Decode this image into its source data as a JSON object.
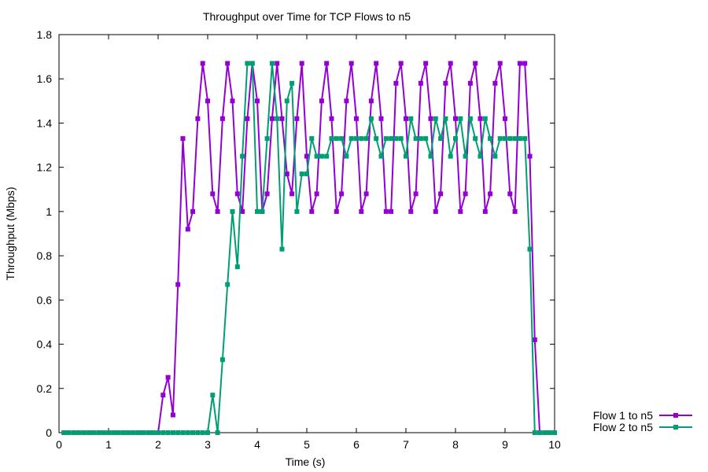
{
  "chart_data": {
    "type": "line",
    "title": "Throughput over Time for TCP Flows to n5",
    "xlabel": "Time (s)",
    "ylabel": "Throughput (Mbps)",
    "xlim": [
      0,
      10
    ],
    "ylim": [
      0,
      1.8
    ],
    "xticks": [
      "0",
      "1",
      "2",
      "3",
      "4",
      "5",
      "6",
      "7",
      "8",
      "9",
      "10"
    ],
    "yticks": [
      "0",
      "0.2",
      "0.4",
      "0.6",
      "0.8",
      "1",
      "1.2",
      "1.4",
      "1.6",
      "1.8"
    ],
    "grid": false,
    "legend_position": "bottom-right outside plot",
    "series": [
      {
        "name": "Flow 1 to n5",
        "color": "#9400d3",
        "points": [
          [
            0.1,
            0
          ],
          [
            0.2,
            0
          ],
          [
            0.3,
            0
          ],
          [
            0.4,
            0
          ],
          [
            0.5,
            0
          ],
          [
            0.6,
            0
          ],
          [
            0.7,
            0
          ],
          [
            0.8,
            0
          ],
          [
            0.9,
            0
          ],
          [
            1.0,
            0
          ],
          [
            1.1,
            0
          ],
          [
            1.2,
            0
          ],
          [
            1.3,
            0
          ],
          [
            1.4,
            0
          ],
          [
            1.5,
            0
          ],
          [
            1.6,
            0
          ],
          [
            1.7,
            0
          ],
          [
            1.8,
            0
          ],
          [
            1.9,
            0
          ],
          [
            2.0,
            0
          ],
          [
            2.1,
            0.17
          ],
          [
            2.2,
            0.25
          ],
          [
            2.3,
            0.08
          ],
          [
            2.4,
            0.67
          ],
          [
            2.5,
            1.33
          ],
          [
            2.6,
            0.92
          ],
          [
            2.7,
            1.0
          ],
          [
            2.8,
            1.42
          ],
          [
            2.9,
            1.67
          ],
          [
            3.0,
            1.5
          ],
          [
            3.1,
            1.08
          ],
          [
            3.2,
            1.0
          ],
          [
            3.3,
            1.42
          ],
          [
            3.4,
            1.67
          ],
          [
            3.5,
            1.5
          ],
          [
            3.6,
            1.08
          ],
          [
            3.7,
            1.0
          ],
          [
            3.8,
            1.42
          ],
          [
            3.9,
            1.67
          ],
          [
            4.0,
            1.5
          ],
          [
            4.1,
            1.0
          ],
          [
            4.2,
            1.08
          ],
          [
            4.3,
            1.42
          ],
          [
            4.4,
            1.67
          ],
          [
            4.5,
            1.42
          ],
          [
            4.6,
            1.17
          ],
          [
            4.7,
            1.08
          ],
          [
            4.8,
            1.42
          ],
          [
            4.9,
            1.67
          ],
          [
            5.0,
            1.25
          ],
          [
            5.1,
            1.0
          ],
          [
            5.2,
            1.08
          ],
          [
            5.3,
            1.5
          ],
          [
            5.4,
            1.67
          ],
          [
            5.5,
            1.42
          ],
          [
            5.6,
            1.0
          ],
          [
            5.7,
            1.08
          ],
          [
            5.8,
            1.5
          ],
          [
            5.9,
            1.67
          ],
          [
            6.0,
            1.42
          ],
          [
            6.1,
            1.0
          ],
          [
            6.2,
            1.08
          ],
          [
            6.3,
            1.5
          ],
          [
            6.4,
            1.67
          ],
          [
            6.5,
            1.42
          ],
          [
            6.6,
            1.0
          ],
          [
            6.7,
            1.0
          ],
          [
            6.8,
            1.58
          ],
          [
            6.9,
            1.67
          ],
          [
            7.0,
            1.42
          ],
          [
            7.1,
            1.0
          ],
          [
            7.2,
            1.08
          ],
          [
            7.3,
            1.58
          ],
          [
            7.4,
            1.67
          ],
          [
            7.5,
            1.42
          ],
          [
            7.6,
            1.0
          ],
          [
            7.7,
            1.08
          ],
          [
            7.8,
            1.58
          ],
          [
            7.9,
            1.67
          ],
          [
            8.0,
            1.42
          ],
          [
            8.1,
            1.0
          ],
          [
            8.2,
            1.08
          ],
          [
            8.3,
            1.58
          ],
          [
            8.4,
            1.67
          ],
          [
            8.5,
            1.42
          ],
          [
            8.6,
            1.0
          ],
          [
            8.7,
            1.08
          ],
          [
            8.8,
            1.58
          ],
          [
            8.9,
            1.67
          ],
          [
            9.0,
            1.42
          ],
          [
            9.1,
            1.08
          ],
          [
            9.2,
            1.0
          ],
          [
            9.3,
            1.67
          ],
          [
            9.4,
            1.67
          ],
          [
            9.5,
            1.25
          ],
          [
            9.6,
            0.42
          ],
          [
            9.7,
            0
          ],
          [
            9.8,
            0
          ],
          [
            9.9,
            0
          ],
          [
            10.0,
            0
          ]
        ]
      },
      {
        "name": "Flow 2 to n5",
        "color": "#009e73",
        "points": [
          [
            0.1,
            0
          ],
          [
            0.2,
            0
          ],
          [
            0.3,
            0
          ],
          [
            0.4,
            0
          ],
          [
            0.5,
            0
          ],
          [
            0.6,
            0
          ],
          [
            0.7,
            0
          ],
          [
            0.8,
            0
          ],
          [
            0.9,
            0
          ],
          [
            1.0,
            0
          ],
          [
            1.1,
            0
          ],
          [
            1.2,
            0
          ],
          [
            1.3,
            0
          ],
          [
            1.4,
            0
          ],
          [
            1.5,
            0
          ],
          [
            1.6,
            0
          ],
          [
            1.7,
            0
          ],
          [
            1.8,
            0
          ],
          [
            1.9,
            0
          ],
          [
            2.0,
            0
          ],
          [
            2.1,
            0
          ],
          [
            2.2,
            0
          ],
          [
            2.3,
            0
          ],
          [
            2.4,
            0
          ],
          [
            2.5,
            0
          ],
          [
            2.6,
            0
          ],
          [
            2.7,
            0
          ],
          [
            2.8,
            0
          ],
          [
            2.9,
            0
          ],
          [
            3.0,
            0
          ],
          [
            3.1,
            0.17
          ],
          [
            3.2,
            0
          ],
          [
            3.3,
            0.33
          ],
          [
            3.4,
            0.67
          ],
          [
            3.5,
            1.0
          ],
          [
            3.6,
            0.75
          ],
          [
            3.7,
            1.25
          ],
          [
            3.8,
            1.67
          ],
          [
            3.9,
            1.67
          ],
          [
            4.0,
            1.0
          ],
          [
            4.1,
            1.0
          ],
          [
            4.2,
            1.33
          ],
          [
            4.3,
            1.67
          ],
          [
            4.4,
            1.42
          ],
          [
            4.5,
            0.83
          ],
          [
            4.6,
            1.5
          ],
          [
            4.7,
            1.58
          ],
          [
            4.8,
            1.0
          ],
          [
            4.9,
            1.17
          ],
          [
            5.0,
            1.17
          ],
          [
            5.1,
            1.33
          ],
          [
            5.2,
            1.25
          ],
          [
            5.3,
            1.25
          ],
          [
            5.4,
            1.25
          ],
          [
            5.5,
            1.33
          ],
          [
            5.6,
            1.33
          ],
          [
            5.7,
            1.33
          ],
          [
            5.8,
            1.25
          ],
          [
            5.9,
            1.33
          ],
          [
            6.0,
            1.33
          ],
          [
            6.1,
            1.33
          ],
          [
            6.2,
            1.33
          ],
          [
            6.3,
            1.42
          ],
          [
            6.4,
            1.33
          ],
          [
            6.5,
            1.25
          ],
          [
            6.6,
            1.33
          ],
          [
            6.7,
            1.33
          ],
          [
            6.8,
            1.33
          ],
          [
            6.9,
            1.33
          ],
          [
            7.0,
            1.25
          ],
          [
            7.1,
            1.42
          ],
          [
            7.2,
            1.33
          ],
          [
            7.3,
            1.33
          ],
          [
            7.4,
            1.33
          ],
          [
            7.5,
            1.25
          ],
          [
            7.6,
            1.42
          ],
          [
            7.7,
            1.33
          ],
          [
            7.8,
            1.42
          ],
          [
            7.9,
            1.25
          ],
          [
            8.0,
            1.33
          ],
          [
            8.1,
            1.42
          ],
          [
            8.2,
            1.25
          ],
          [
            8.3,
            1.42
          ],
          [
            8.4,
            1.33
          ],
          [
            8.5,
            1.25
          ],
          [
            8.6,
            1.42
          ],
          [
            8.7,
            1.33
          ],
          [
            8.8,
            1.25
          ],
          [
            8.9,
            1.33
          ],
          [
            9.0,
            1.33
          ],
          [
            9.1,
            1.33
          ],
          [
            9.2,
            1.33
          ],
          [
            9.3,
            1.33
          ],
          [
            9.4,
            1.33
          ],
          [
            9.5,
            0.83
          ],
          [
            9.6,
            0
          ],
          [
            9.7,
            0
          ],
          [
            9.8,
            0
          ],
          [
            9.9,
            0
          ],
          [
            10.0,
            0
          ]
        ]
      }
    ]
  }
}
